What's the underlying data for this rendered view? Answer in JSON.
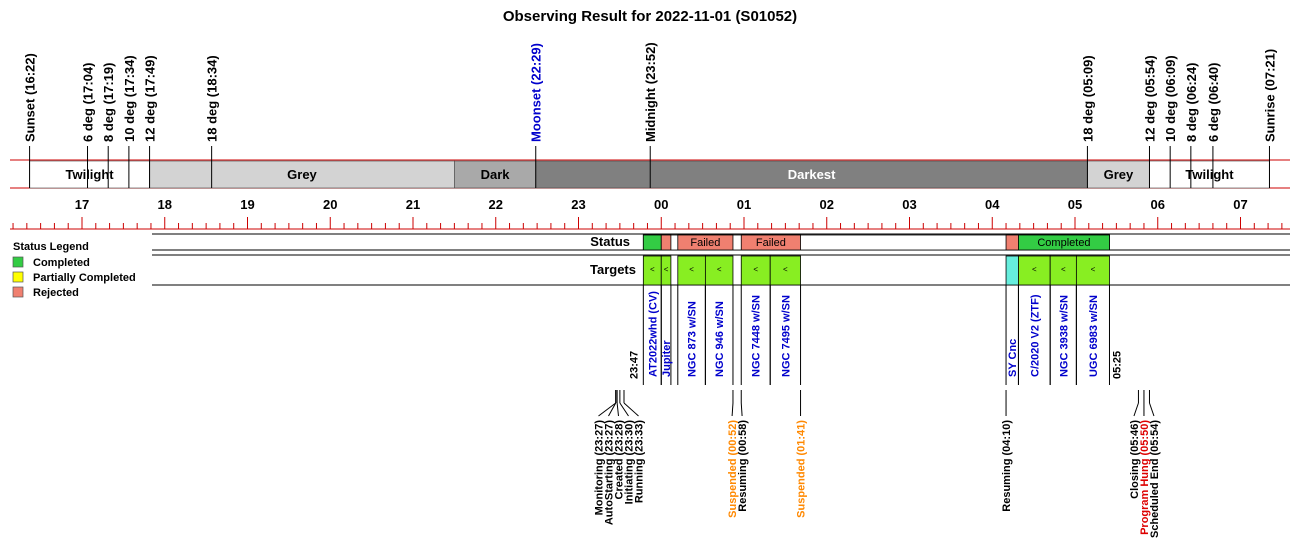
{
  "title": "Observing Result for 2022-11-01 (S01052)",
  "colors": {
    "completed": "#33cc44",
    "partial": "#ffff00",
    "rejected": "#f08070",
    "target_bar": "#88ee22",
    "target_bar_alt": "#66eedd",
    "grey": "#d3d3d3",
    "dark": "#a9a9a9",
    "darkest": "#808080",
    "twilight": "#ffffff",
    "red_line": "#cc0000",
    "blue_text": "#0000cc",
    "orange_text": "#ff8800",
    "red_text": "#dd0000"
  },
  "chart_data": {
    "type": "timeline",
    "title": "Observing Result for 2022-11-01 (S01052)",
    "time_axis": {
      "unit": "hour",
      "range": [
        "16:20",
        "07:40"
      ],
      "ticks": [
        "17",
        "18",
        "19",
        "20",
        "21",
        "22",
        "23",
        "00",
        "01",
        "02",
        "03",
        "04",
        "05",
        "06",
        "07"
      ]
    },
    "sun_events": [
      {
        "label": "Sunset (16:22)",
        "time": "16:22",
        "color": "black"
      },
      {
        "label": "6 deg (17:04)",
        "time": "17:04",
        "color": "black"
      },
      {
        "label": "8 deg (17:19)",
        "time": "17:19",
        "color": "black"
      },
      {
        "label": "10 deg (17:34)",
        "time": "17:34",
        "color": "black"
      },
      {
        "label": "12 deg (17:49)",
        "time": "17:49",
        "color": "black"
      },
      {
        "label": "18 deg (18:34)",
        "time": "18:34",
        "color": "black"
      },
      {
        "label": "Moonset (22:29)",
        "time": "22:29",
        "color": "blue"
      },
      {
        "label": "Midnight (23:52)",
        "time": "23:52",
        "color": "black"
      },
      {
        "label": "18 deg (05:09)",
        "time": "05:09",
        "color": "black"
      },
      {
        "label": "12 deg (05:54)",
        "time": "05:54",
        "color": "black"
      },
      {
        "label": "10 deg (06:09)",
        "time": "06:09",
        "color": "black"
      },
      {
        "label": "8 deg (06:24)",
        "time": "06:24",
        "color": "black"
      },
      {
        "label": "6 deg (06:40)",
        "time": "06:40",
        "color": "black"
      },
      {
        "label": "Sunrise (07:21)",
        "time": "07:21",
        "color": "black"
      }
    ],
    "sky_bands": [
      {
        "label": "Twilight",
        "start": "16:22",
        "end": "17:49",
        "shade": "twilight"
      },
      {
        "label": "Grey",
        "start": "17:49",
        "end": "21:30",
        "shade": "grey"
      },
      {
        "label": "Dark",
        "start": "21:30",
        "end": "22:29",
        "shade": "dark"
      },
      {
        "label": "Darkest",
        "start": "22:29",
        "end": "05:09",
        "shade": "darkest"
      },
      {
        "label": "Grey",
        "start": "05:09",
        "end": "05:54",
        "shade": "grey"
      },
      {
        "label": "Twilight",
        "start": "05:54",
        "end": "07:21",
        "shade": "twilight"
      }
    ],
    "status_row_label": "Status",
    "targets_row_label": "Targets",
    "status_segments": [
      {
        "start": "23:47",
        "end": "00:00",
        "status": "completed",
        "label": ""
      },
      {
        "start": "00:00",
        "end": "00:07",
        "status": "rejected",
        "label": ""
      },
      {
        "start": "00:12",
        "end": "00:52",
        "status": "rejected",
        "label": "Failed"
      },
      {
        "start": "00:58",
        "end": "01:41",
        "status": "rejected",
        "label": "Failed"
      },
      {
        "start": "04:10",
        "end": "04:19",
        "status": "rejected",
        "label": ""
      },
      {
        "start": "04:19",
        "end": "05:25",
        "status": "completed",
        "label": "Completed"
      }
    ],
    "targets": [
      {
        "name": "AT2022whd (CV)",
        "start": "23:47",
        "end": "00:00",
        "mark": "<",
        "style": "target_bar"
      },
      {
        "name": "Jupiter",
        "start": "00:00",
        "end": "00:07",
        "mark": "<",
        "style": "target_bar"
      },
      {
        "name": "NGC 873 w/SN",
        "start": "00:12",
        "end": "00:32",
        "mark": "<",
        "style": "target_bar"
      },
      {
        "name": "NGC 946 w/SN",
        "start": "00:32",
        "end": "00:52",
        "mark": "<",
        "style": "target_bar"
      },
      {
        "name": "NGC 7448 w/SN",
        "start": "00:58",
        "end": "01:19",
        "mark": "<",
        "style": "target_bar"
      },
      {
        "name": "NGC 7495 w/SN",
        "start": "01:19",
        "end": "01:41",
        "mark": "<",
        "style": "target_bar"
      },
      {
        "name": "SY Cnc",
        "start": "04:10",
        "end": "04:19",
        "mark": "",
        "style": "target_bar_alt"
      },
      {
        "name": "C/2020 V2 (ZTF)",
        "start": "04:19",
        "end": "04:42",
        "mark": "<",
        "style": "target_bar"
      },
      {
        "name": "NGC 3938 w/SN",
        "start": "04:42",
        "end": "05:01",
        "mark": "<",
        "style": "target_bar"
      },
      {
        "name": "UGC 6983 w/SN",
        "start": "05:01",
        "end": "05:25",
        "mark": "<",
        "style": "target_bar"
      }
    ],
    "time_markers": [
      {
        "label": "23:47",
        "time": "23:47"
      },
      {
        "label": "05:25",
        "time": "05:25"
      }
    ],
    "events": [
      {
        "label": "Monitoring (23:27)",
        "time": "23:27",
        "color": "black"
      },
      {
        "label": "AutoStarting (23:27)",
        "time": "23:27",
        "color": "black"
      },
      {
        "label": "Created (23:28)",
        "time": "23:28",
        "color": "black"
      },
      {
        "label": "Initiating (23:30)",
        "time": "23:30",
        "color": "black"
      },
      {
        "label": "Running (23:33)",
        "time": "23:33",
        "color": "black"
      },
      {
        "label": "Suspended (00:52)",
        "time": "00:52",
        "color": "orange"
      },
      {
        "label": "Resuming (00:58)",
        "time": "00:58",
        "color": "black"
      },
      {
        "label": "Suspended (01:41)",
        "time": "01:41",
        "color": "orange"
      },
      {
        "label": "Resuming (04:10)",
        "time": "04:10",
        "color": "black"
      },
      {
        "label": "Closing (05:46)",
        "time": "05:46",
        "color": "black"
      },
      {
        "label": "Program Hung (05:50)",
        "time": "05:50",
        "color": "red"
      },
      {
        "label": "Scheduled End (05:54)",
        "time": "05:54",
        "color": "black"
      }
    ],
    "legend": {
      "title": "Status Legend",
      "placement": "left",
      "items": [
        {
          "label": "Completed",
          "status": "completed"
        },
        {
          "label": "Partially Completed",
          "status": "partial"
        },
        {
          "label": "Rejected",
          "status": "rejected"
        }
      ]
    }
  }
}
